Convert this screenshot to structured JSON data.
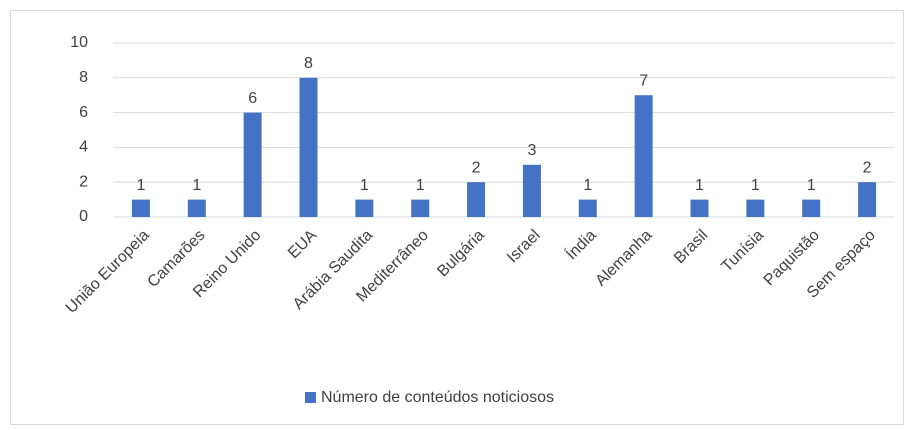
{
  "chart_data": {
    "type": "bar",
    "categories": [
      "União Europeia",
      "Camarões",
      "Reino Unido",
      "EUA",
      "Arábia Saudita",
      "Mediterrâneo",
      "Bulgária",
      "Israel",
      "Índia",
      "Alemanha",
      "Brasil",
      "Tunísia",
      "Paquistão",
      "Sem espaço"
    ],
    "series": [
      {
        "name": "Número de conteúdos noticiosos",
        "color": "#4472c4",
        "values": [
          1,
          1,
          6,
          8,
          1,
          1,
          2,
          3,
          1,
          7,
          1,
          1,
          1,
          2
        ]
      }
    ],
    "ylim": [
      0,
      10
    ],
    "yticks": [
      0,
      2,
      4,
      6,
      8,
      10
    ],
    "grid": true,
    "legend": "bottom"
  }
}
